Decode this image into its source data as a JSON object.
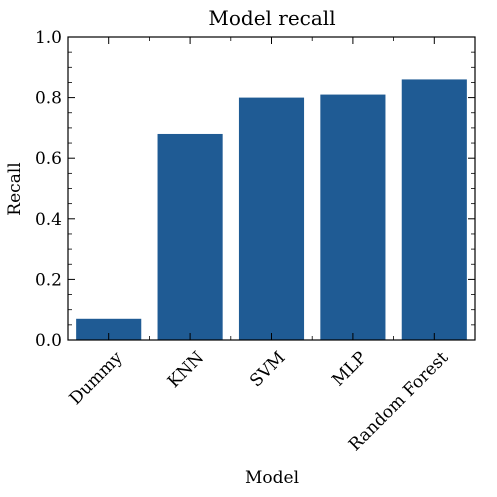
{
  "chart_data": {
    "type": "bar",
    "title": "Model recall",
    "xlabel": "Model",
    "ylabel": "Recall",
    "categories": [
      "Dummy",
      "KNN",
      "SVM",
      "MLP",
      "Random Forest"
    ],
    "values": [
      0.07,
      0.68,
      0.8,
      0.81,
      0.86
    ],
    "ylim": [
      0.0,
      1.0
    ],
    "yticks": [
      "0.0",
      "0.2",
      "0.4",
      "0.6",
      "0.8",
      "1.0"
    ],
    "grid": false,
    "bar_color": "#1f5b94"
  }
}
